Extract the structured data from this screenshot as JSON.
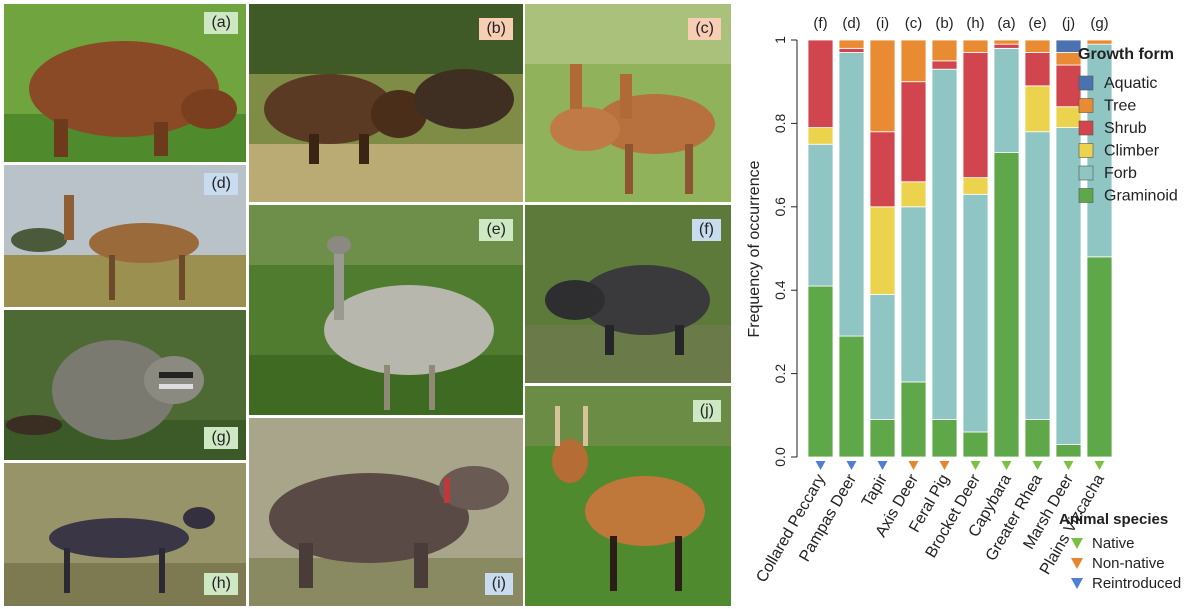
{
  "panels": [
    {
      "id": "a",
      "label": "(a)",
      "species": "Capybara",
      "status": "native"
    },
    {
      "id": "b",
      "label": "(b)",
      "species": "Feral Pig",
      "status": "non-native"
    },
    {
      "id": "c",
      "label": "(c)",
      "species": "Axis Deer",
      "status": "non-native"
    },
    {
      "id": "d",
      "label": "(d)",
      "species": "Pampas Deer",
      "status": "reintroduced"
    },
    {
      "id": "e",
      "label": "(e)",
      "species": "Greater Rhea",
      "status": "native"
    },
    {
      "id": "f",
      "label": "(f)",
      "species": "Collared Peccary",
      "status": "reintroduced"
    },
    {
      "id": "g",
      "label": "(g)",
      "species": "Plains Vizcacha",
      "status": "native"
    },
    {
      "id": "h",
      "label": "(h)",
      "species": "Brocket Deer",
      "status": "native"
    },
    {
      "id": "i",
      "label": "(i)",
      "species": "Tapir",
      "status": "reintroduced"
    },
    {
      "id": "j",
      "label": "(j)",
      "species": "Marsh Deer",
      "status": "native"
    }
  ],
  "colors": {
    "badge_native": "#cfe8c4",
    "badge_non_native": "#f7cdb3",
    "badge_reintroduced": "#c9dcef"
  },
  "chart_data": {
    "type": "bar",
    "stacked": true,
    "ylabel": "Frequency of occurrence",
    "ylim": [
      0,
      1
    ],
    "yticks": [
      "0.0",
      "0.2",
      "0.4",
      "0.6",
      "0.8",
      "1"
    ],
    "ytick_values": [
      0,
      0.2,
      0.4,
      0.6,
      0.8,
      1
    ],
    "categories": [
      "Collared Peccary",
      "Pampas Deer",
      "Tapir",
      "Axis Deer",
      "Feral Pig",
      "Brocket Deer",
      "Capybara",
      "Greater Rhea",
      "Marsh Deer",
      "Plains Vizcacha"
    ],
    "panel_labels": [
      "(f)",
      "(d)",
      "(i)",
      "(c)",
      "(b)",
      "(h)",
      "(a)",
      "(e)",
      "(j)",
      "(g)"
    ],
    "status": [
      "reintroduced",
      "reintroduced",
      "reintroduced",
      "non-native",
      "non-native",
      "native",
      "native",
      "native",
      "native",
      "native"
    ],
    "series": [
      {
        "name": "Graminoid",
        "color": "#5fa84a",
        "values": [
          0.41,
          0.29,
          0.09,
          0.18,
          0.09,
          0.06,
          0.73,
          0.09,
          0.03,
          0.48
        ]
      },
      {
        "name": "Forb",
        "color": "#8fc5c2",
        "values": [
          0.34,
          0.68,
          0.3,
          0.42,
          0.84,
          0.57,
          0.25,
          0.69,
          0.76,
          0.51
        ]
      },
      {
        "name": "Climber",
        "color": "#ecd34e",
        "values": [
          0.04,
          0.0,
          0.21,
          0.06,
          0.0,
          0.04,
          0.0,
          0.11,
          0.05,
          0.0
        ]
      },
      {
        "name": "Shrub",
        "color": "#d1464e",
        "values": [
          0.21,
          0.01,
          0.18,
          0.24,
          0.02,
          0.3,
          0.01,
          0.08,
          0.1,
          0.0
        ]
      },
      {
        "name": "Tree",
        "color": "#e98b32",
        "values": [
          0.0,
          0.02,
          0.22,
          0.1,
          0.05,
          0.03,
          0.01,
          0.03,
          0.03,
          0.01
        ]
      },
      {
        "name": "Aquatic",
        "color": "#4a72b0",
        "values": [
          0.0,
          0.0,
          0.0,
          0.0,
          0.0,
          0.0,
          0.0,
          0.0,
          0.03,
          0.0
        ]
      }
    ],
    "legend_growth": {
      "title": "Growth form",
      "items": [
        "Aquatic",
        "Tree",
        "Shrub",
        "Climber",
        "Forb",
        "Graminoid"
      ],
      "placement": "top-right"
    },
    "legend_species": {
      "title": "Animal species",
      "items": [
        {
          "label": "Native",
          "key": "native",
          "color": "#79c043"
        },
        {
          "label": "Non-native",
          "key": "non-native",
          "color": "#e7852e"
        },
        {
          "label": "Reintroduced",
          "key": "reintroduced",
          "color": "#4d7fd4"
        }
      ],
      "placement": "bottom-right"
    }
  }
}
